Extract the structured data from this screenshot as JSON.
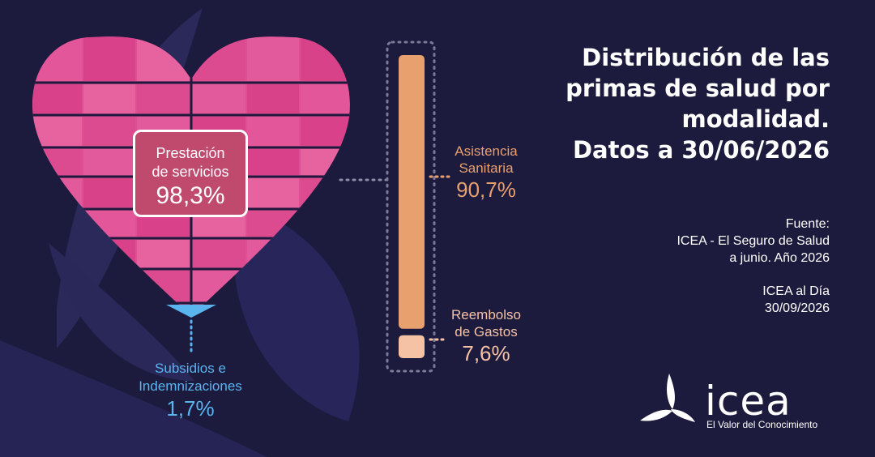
{
  "title_lines": [
    "Distribución de las",
    "primas de salud por",
    "modalidad.",
    "Datos a 30/06/2026"
  ],
  "source": {
    "lines": [
      "Fuente:",
      "ICEA - El Seguro de Salud",
      "a junio. Año 2026"
    ],
    "lines2": [
      "ICEA al Día",
      "30/09/2026"
    ]
  },
  "logo": {
    "name": "icea",
    "tagline": "El Valor del Conocimiento"
  },
  "chart_data": [
    {
      "type": "pie",
      "categories": [
        "Prestación de servicios",
        "Subsidios e Indemnizaciones"
      ],
      "values": [
        98.3,
        1.7
      ],
      "labels": [
        {
          "name_lines": [
            "Prestación",
            "de servicios"
          ],
          "value_text": "98,3%"
        },
        {
          "name_lines": [
            "Subsidios e",
            "Indemnizaciones"
          ],
          "value_text": "1,7%"
        }
      ]
    },
    {
      "type": "bar",
      "categories": [
        "Asistencia Sanitaria",
        "Reembolso de Gastos"
      ],
      "values": [
        90.7,
        7.6
      ],
      "labels": [
        {
          "name_lines": [
            "Asistencia",
            "Sanitaria"
          ],
          "value_text": "90,7%"
        },
        {
          "name_lines": [
            "Reembolso",
            "de Gastos"
          ],
          "value_text": "7,6%"
        }
      ]
    }
  ],
  "colors": {
    "background": "#1c1a3d",
    "heart": "#df4f94",
    "subsidios": "#5ab4ee",
    "asistencia": "#e8a06e",
    "reembolso": "#f6c2a6",
    "prest_box": "#c04a6e"
  }
}
